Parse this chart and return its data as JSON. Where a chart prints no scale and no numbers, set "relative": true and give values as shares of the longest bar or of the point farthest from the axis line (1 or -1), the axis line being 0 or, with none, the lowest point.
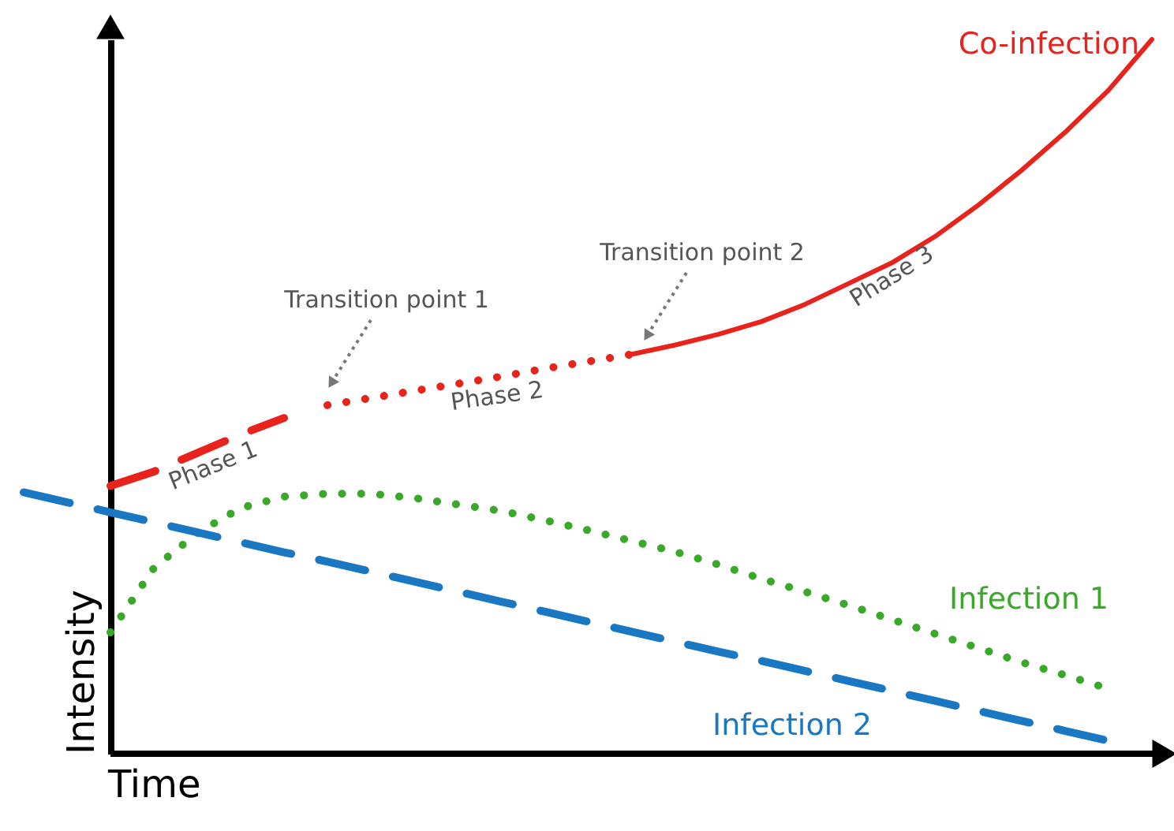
{
  "chart_data": {
    "type": "line",
    "xlabel": "Time",
    "ylabel": "Intensity",
    "relative": true,
    "grid": false,
    "categories": [
      null,
      null,
      null,
      null,
      null,
      null,
      null,
      null,
      null,
      null,
      null,
      null,
      null,
      null,
      null,
      null,
      null,
      null,
      null,
      null,
      null,
      null,
      null,
      null,
      null,
      null,
      null
    ],
    "series": [
      {
        "color": "#e8231c",
        "line_style": "dashed",
        "values": [
          null,
          null,
          0.375,
          0.395,
          0.421,
          0.447,
          0.47,
          null,
          null,
          null,
          null,
          null,
          null,
          null,
          null,
          null,
          null,
          null,
          null,
          null,
          null,
          null,
          null,
          null,
          null,
          null,
          null
        ]
      },
      {
        "color": "#e8231c",
        "line_style": "dotted",
        "values": [
          null,
          null,
          null,
          null,
          null,
          null,
          null,
          0.488,
          0.498,
          0.508,
          0.518,
          0.528,
          0.539,
          0.549,
          0.559,
          null,
          null,
          null,
          null,
          null,
          null,
          null,
          null,
          null,
          null,
          null,
          null
        ]
      },
      {
        "name": "Co-infection",
        "color": "#e8231c",
        "line_style": "solid",
        "values": [
          null,
          null,
          null,
          null,
          null,
          null,
          null,
          null,
          null,
          null,
          null,
          null,
          null,
          null,
          0.559,
          0.572,
          0.587,
          0.605,
          0.629,
          0.658,
          0.687,
          0.724,
          0.768,
          0.817,
          0.87,
          0.929,
          1
        ]
      },
      {
        "name": "Infection 1",
        "color": "#3aa829",
        "line_style": "dotted",
        "values": [
          null,
          null,
          0.17,
          0.26,
          0.309,
          0.344,
          0.36,
          0.364,
          0.364,
          0.358,
          0.349,
          0.34,
          0.327,
          0.313,
          0.298,
          0.283,
          0.265,
          0.245,
          0.227,
          0.208,
          0.188,
          0.168,
          0.148,
          0.128,
          0.11,
          0.091,
          null
        ]
      },
      {
        "name": "Infection 2",
        "color": "#1a78c2",
        "line_style": "dashed",
        "values": [
          0.366,
          0.352,
          0.338,
          0.324,
          0.31,
          0.296,
          0.282,
          0.269,
          0.255,
          0.241,
          0.227,
          0.213,
          0.199,
          0.185,
          0.171,
          0.157,
          0.143,
          0.13,
          0.116,
          0.102,
          0.088,
          0.074,
          0.06,
          0.046,
          0.032,
          0.018,
          null
        ]
      }
    ],
    "annotations": [
      "Phase 1",
      "Phase 2",
      "Phase 3",
      "Transition point 1",
      "Transition point 2"
    ]
  }
}
